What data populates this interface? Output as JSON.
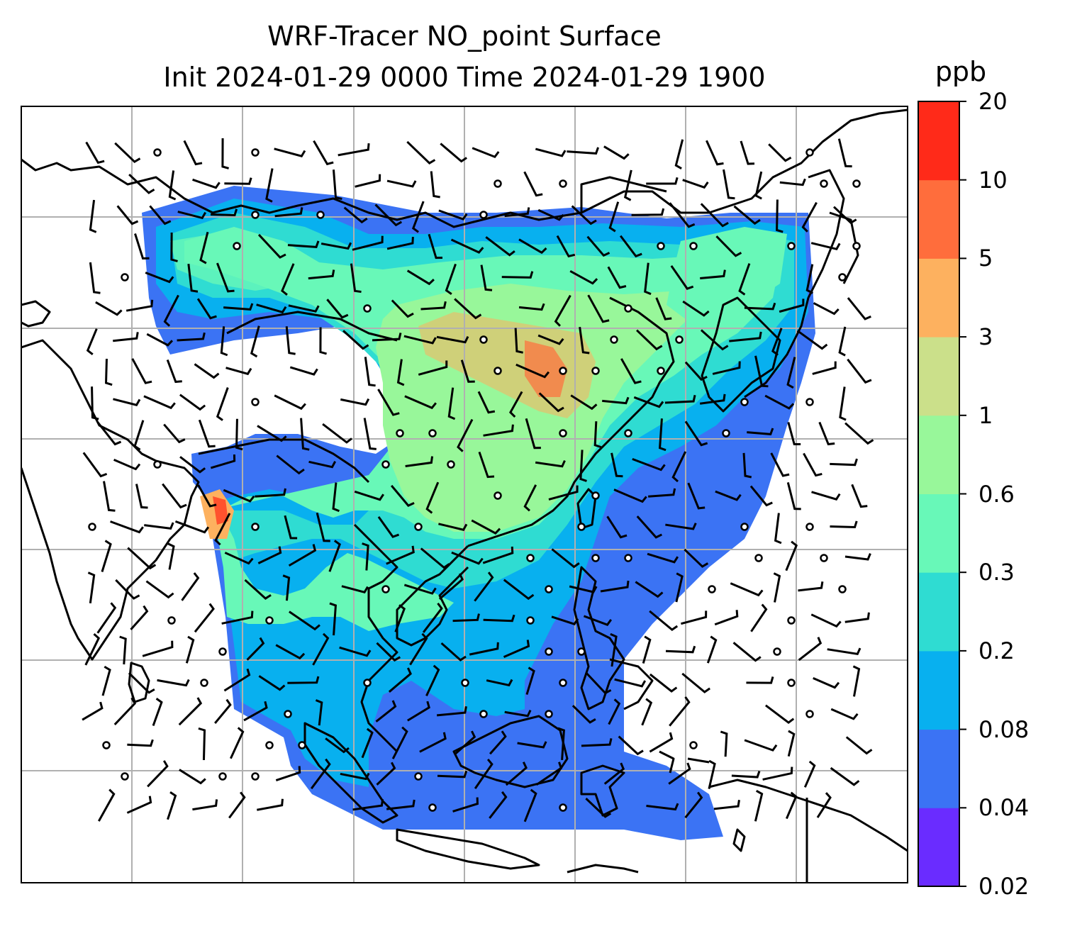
{
  "title": {
    "line1": "WRF-Tracer NO_point Surface",
    "line2": "Init 2024-01-29 0000 Time 2024-01-29 1900"
  },
  "colorbar": {
    "unit": "ppb",
    "levels": [
      "0.02",
      "0.04",
      "0.08",
      "0.2",
      "0.3",
      "0.6",
      "1",
      "3",
      "5",
      "10",
      "20"
    ],
    "colors": [
      "#6a2cff",
      "#3b73f4",
      "#08b0ef",
      "#2fdcd2",
      "#68f8b8",
      "#98f79a",
      "#cbe08a",
      "#fdb15f",
      "#ff6d3c",
      "#ff2a19"
    ]
  },
  "map": {
    "land_outline_color": "#000000",
    "gridline_color": "#b0b0b0",
    "wind_barb_color": "#000000"
  }
}
